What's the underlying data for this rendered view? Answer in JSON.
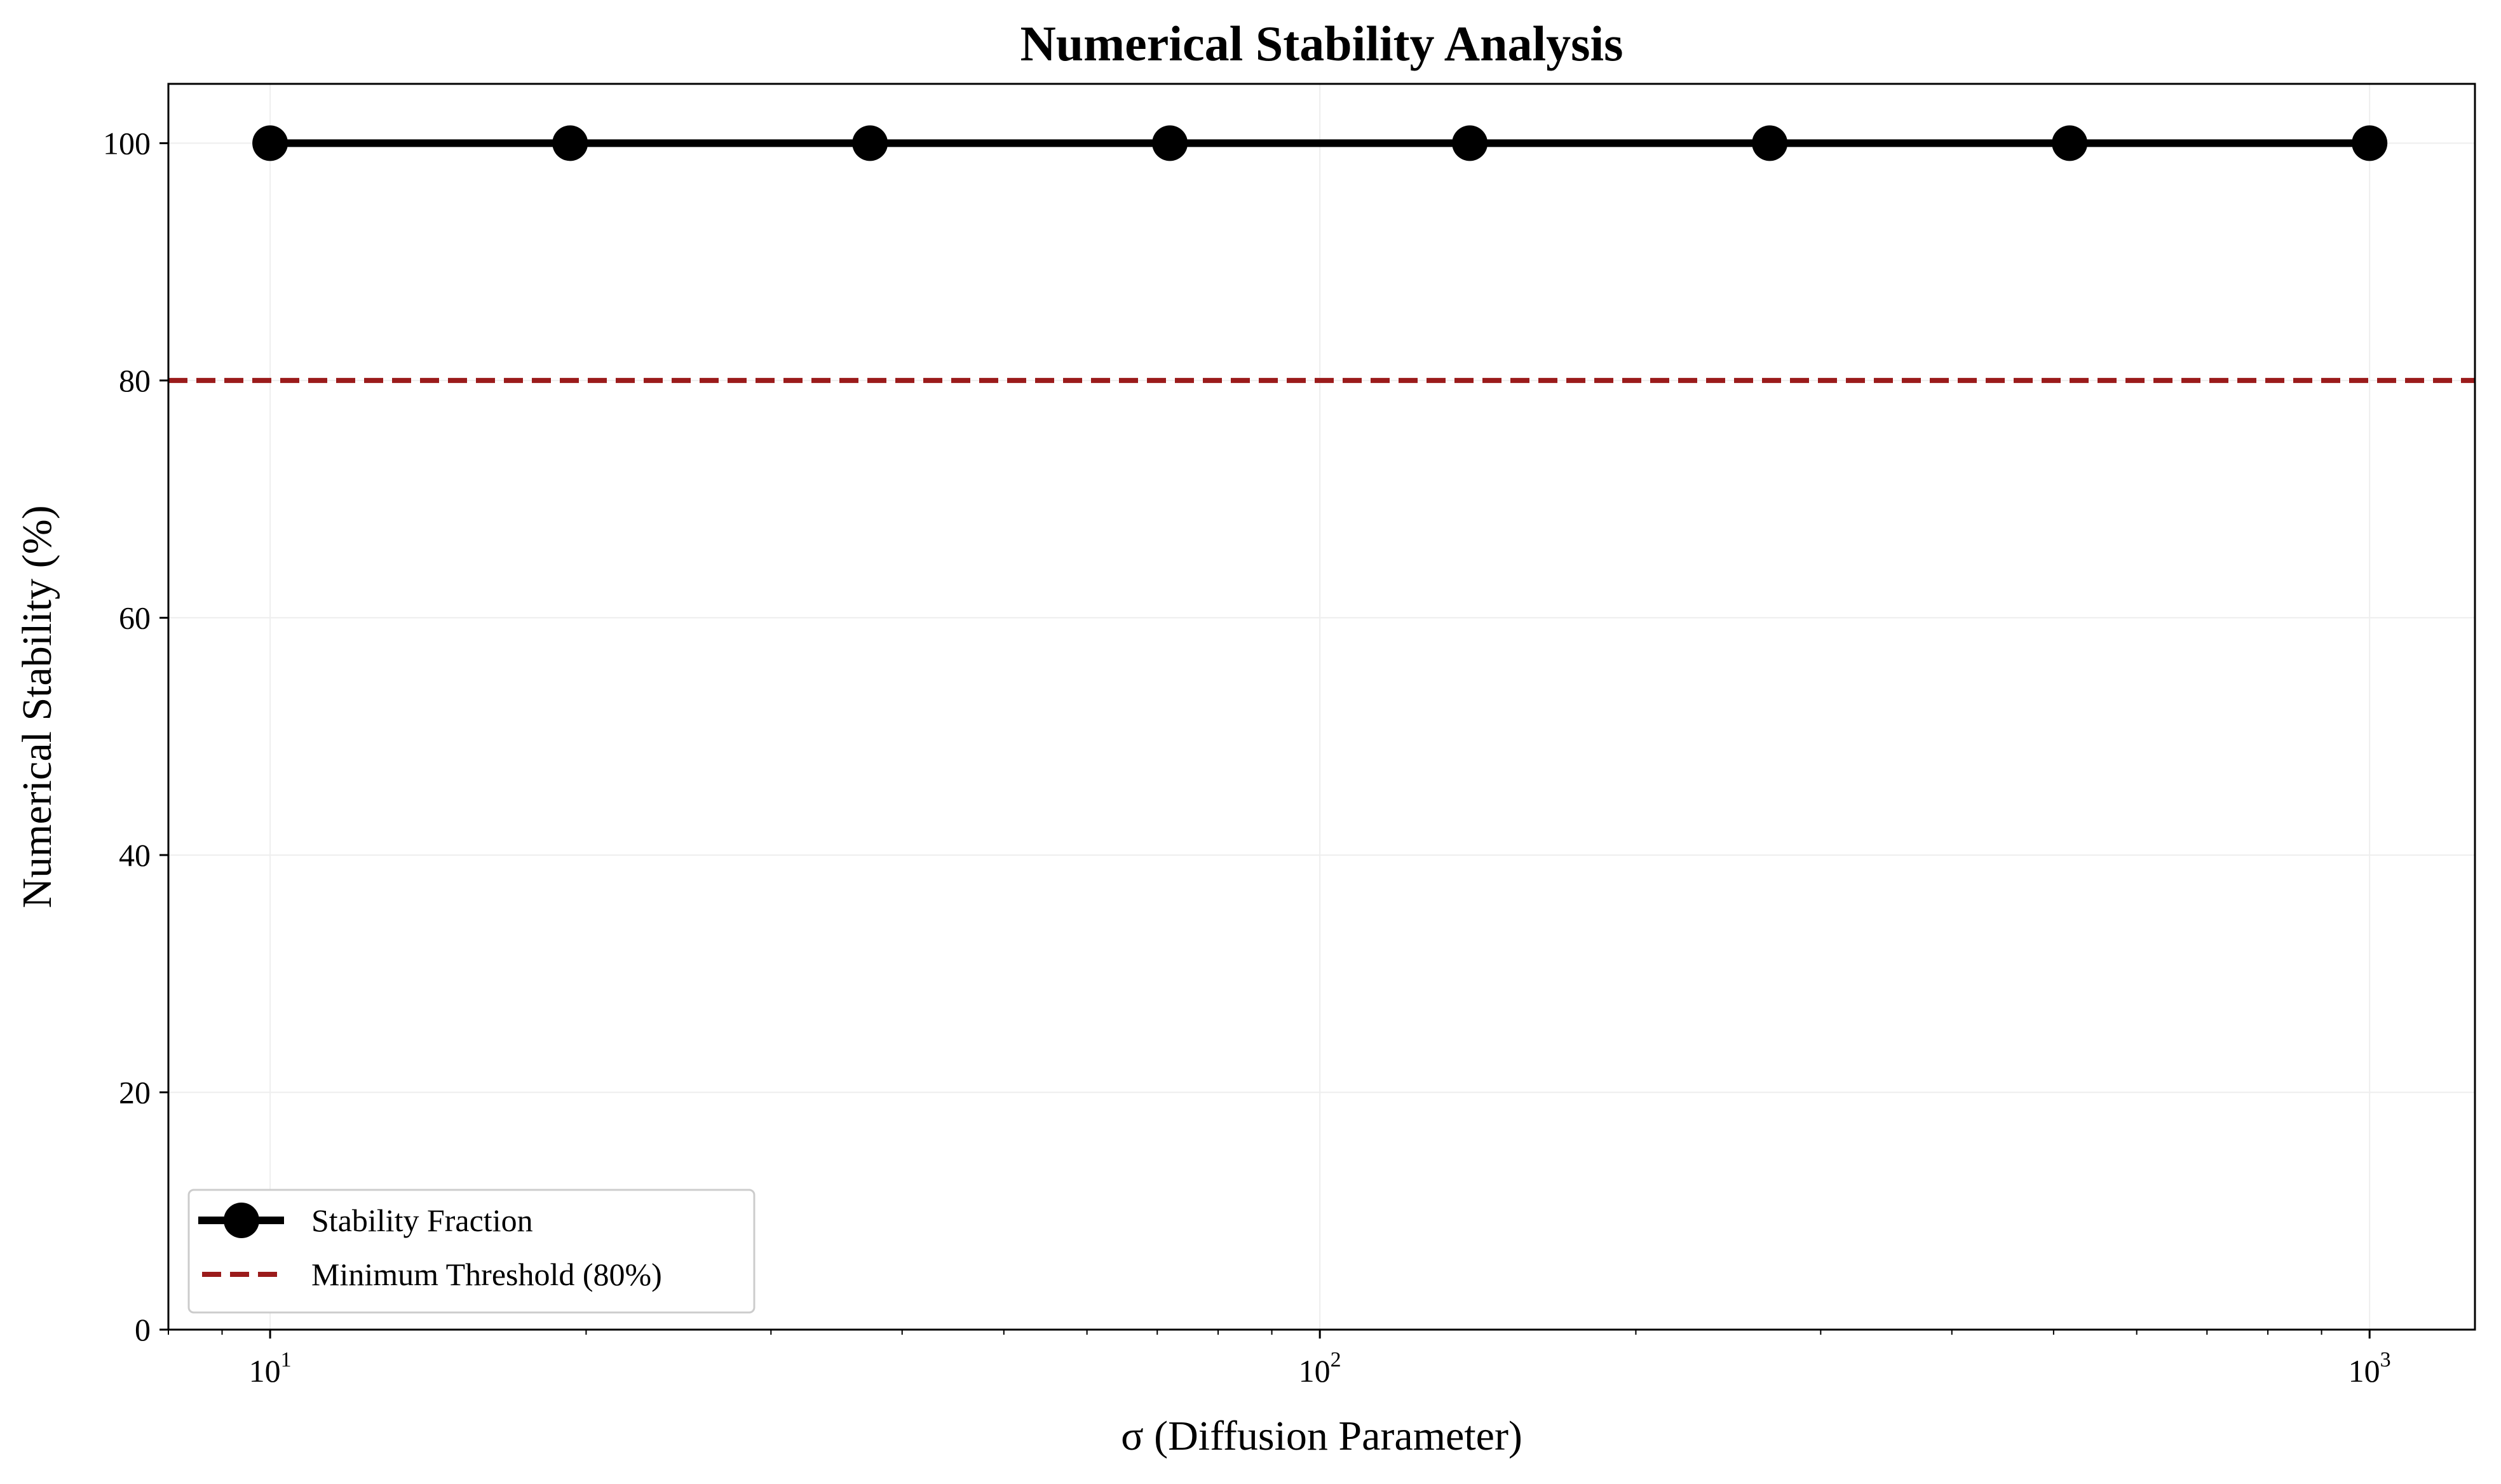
{
  "chart_data": {
    "type": "line",
    "title": "Numerical Stability Analysis",
    "xlabel": "σ (Diffusion Parameter)",
    "ylabel": "Numerical Stability (%)",
    "xscale": "log",
    "xlim": [
      8,
      1260
    ],
    "ylim": [
      0,
      105
    ],
    "grid": true,
    "legend_position": "lower-left",
    "x_ticks": [
      {
        "base": "10",
        "exp": "1",
        "value": 10
      },
      {
        "base": "10",
        "exp": "2",
        "value": 100
      },
      {
        "base": "10",
        "exp": "3",
        "value": 1000
      }
    ],
    "y_ticks": [
      {
        "label": "0",
        "value": 0
      },
      {
        "label": "20",
        "value": 20
      },
      {
        "label": "40",
        "value": 40
      },
      {
        "label": "60",
        "value": 60
      },
      {
        "label": "80",
        "value": 80
      },
      {
        "label": "100",
        "value": 100
      }
    ],
    "series": [
      {
        "name": "Stability Fraction",
        "color": "#000000",
        "marker": "circle",
        "x": [
          10,
          19.31,
          37.28,
          71.97,
          138.95,
          268.27,
          517.95,
          1000
        ],
        "y": [
          100,
          100,
          100,
          100,
          100,
          100,
          100,
          100
        ]
      }
    ],
    "reference_lines": [
      {
        "name": "Minimum Threshold (80%)",
        "orientation": "horizontal",
        "value": 80,
        "color": "#9B1B1B",
        "style": "dashed"
      }
    ]
  }
}
